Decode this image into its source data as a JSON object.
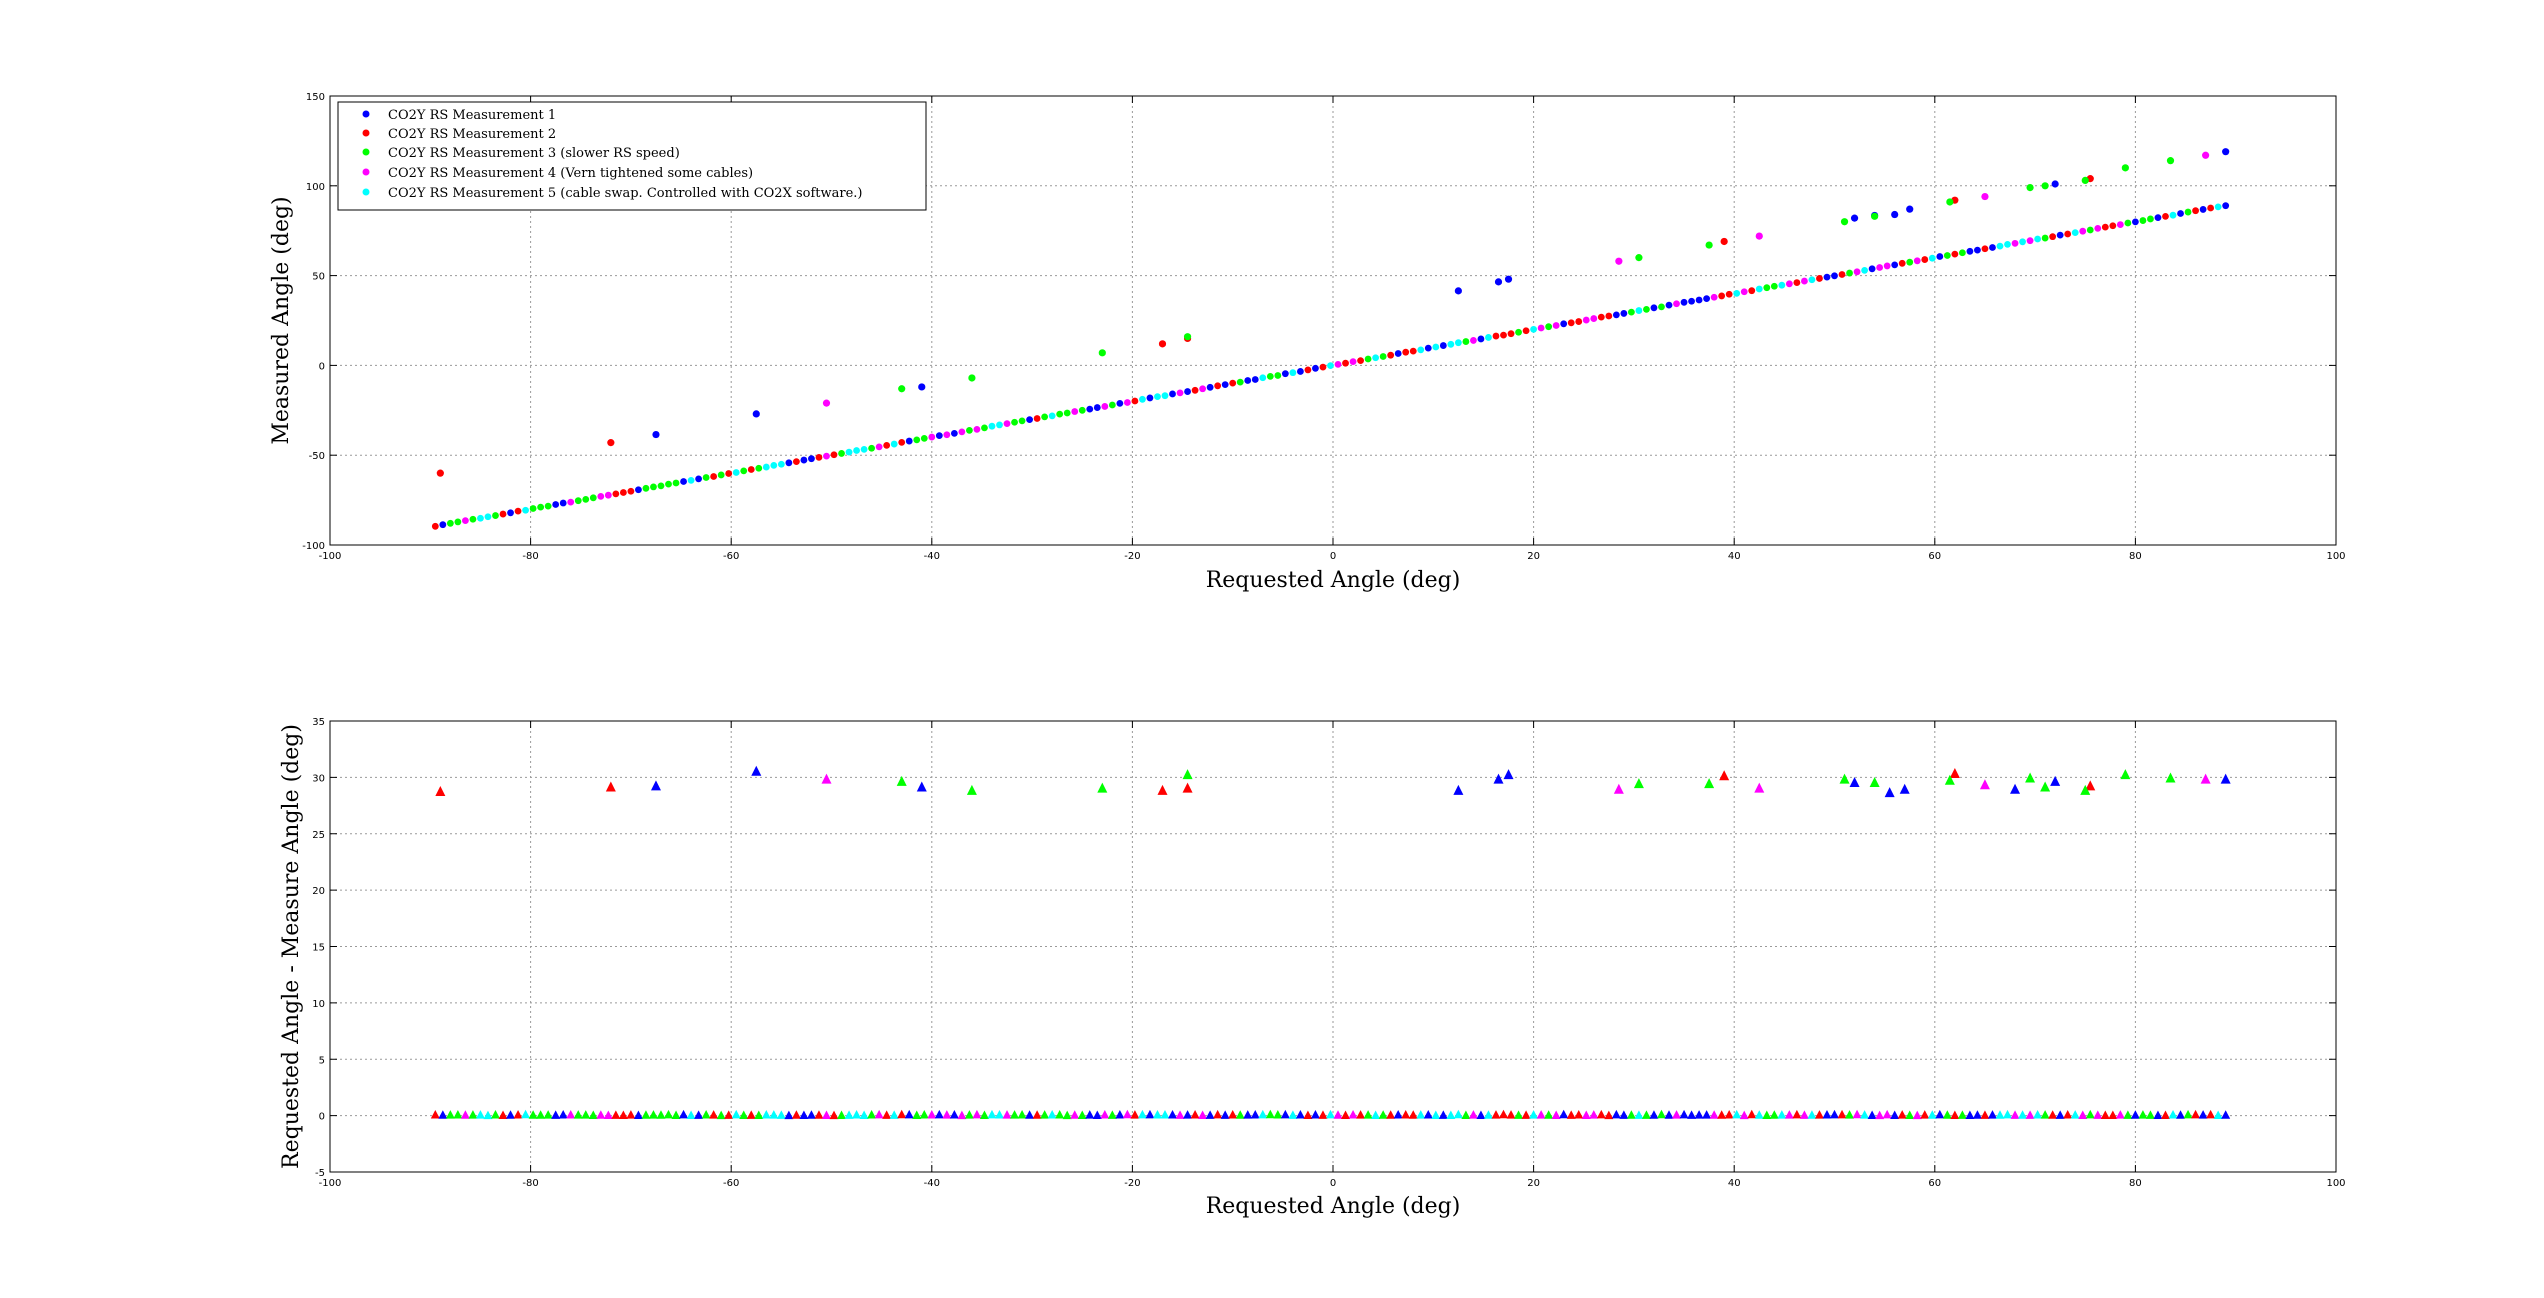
{
  "colors": {
    "background": "#ffffff",
    "series": [
      "#0000ff",
      "#ff0000",
      "#00ff00",
      "#ff00ff",
      "#00ffff"
    ]
  },
  "chart_data": [
    {
      "type": "scatter",
      "marker": "dot",
      "xlabel": "Requested Angle (deg)",
      "ylabel": "Measured Angle (deg)",
      "xlim": [
        -100,
        100
      ],
      "ylim": [
        -100,
        150
      ],
      "xticks": [
        -100,
        -80,
        -60,
        -40,
        -20,
        0,
        20,
        40,
        60,
        80,
        100
      ],
      "yticks": [
        -100,
        -50,
        0,
        50,
        100,
        150
      ],
      "grid": true,
      "legend_placement": "top-left",
      "series": [
        {
          "name": "CO2Y RS Measurement 1",
          "color": "#0000ff",
          "outliers": [
            [
              -67.5,
              -38.5
            ],
            [
              -57.5,
              -27
            ],
            [
              -41,
              -12
            ],
            [
              12.5,
              41.5
            ],
            [
              16.5,
              46.5
            ],
            [
              17.5,
              48
            ],
            [
              52,
              82
            ],
            [
              54,
              83.5
            ],
            [
              56,
              84
            ],
            [
              57.5,
              87
            ],
            [
              72,
              101
            ],
            [
              89,
              119
            ]
          ]
        },
        {
          "name": "CO2Y RS Measurement 2",
          "color": "#ff0000",
          "outliers": [
            [
              -89,
              -60
            ],
            [
              -72,
              -43
            ],
            [
              -17,
              12
            ],
            [
              -14.5,
              15
            ],
            [
              39,
              69
            ],
            [
              62,
              92
            ],
            [
              75.5,
              104
            ]
          ]
        },
        {
          "name": "CO2Y RS Measurement 3 (slower RS speed)",
          "color": "#00ff00",
          "outliers": [
            [
              -43,
              -13
            ],
            [
              -36,
              -7
            ],
            [
              -23,
              7
            ],
            [
              -14.5,
              16
            ],
            [
              30.5,
              60
            ],
            [
              37.5,
              67
            ],
            [
              51,
              80
            ],
            [
              54,
              83
            ],
            [
              61.5,
              91
            ],
            [
              69.5,
              99
            ],
            [
              71,
              100
            ],
            [
              75,
              103
            ],
            [
              79,
              110
            ],
            [
              83.5,
              114
            ]
          ]
        },
        {
          "name": "CO2Y RS Measurement 4 (Vern tightened some cables)",
          "color": "#ff00ff",
          "outliers": [
            [
              -50.5,
              -21
            ],
            [
              28.5,
              58
            ],
            [
              42.5,
              72
            ],
            [
              65,
              94
            ],
            [
              87,
              117
            ]
          ]
        },
        {
          "name": "CO2Y RS Measurement 5 (cable swap.  Controlled with CO2X software.)",
          "color": "#00ffff",
          "outliers": []
        }
      ]
    },
    {
      "type": "scatter",
      "marker": "triangle",
      "xlabel": "Requested Angle (deg)",
      "ylabel": "Requested Angle - Measure Angle (deg)",
      "xlim": [
        -100,
        100
      ],
      "ylim": [
        -5,
        35
      ],
      "xticks": [
        -100,
        -80,
        -60,
        -40,
        -20,
        0,
        20,
        40,
        60,
        80,
        100
      ],
      "yticks": [
        -5,
        0,
        5,
        10,
        15,
        20,
        25,
        30,
        35
      ],
      "grid": true,
      "baseline_value": 0,
      "series": [
        {
          "color": "#0000ff",
          "outliers": [
            [
              -67.5,
              29.2
            ],
            [
              -57.5,
              30.5
            ],
            [
              -41,
              29.1
            ],
            [
              12.5,
              28.8
            ],
            [
              16.5,
              29.8
            ],
            [
              17.5,
              30.2
            ],
            [
              52,
              29.5
            ],
            [
              55.5,
              28.6
            ],
            [
              57,
              28.9
            ],
            [
              68,
              28.9
            ],
            [
              72,
              29.6
            ],
            [
              89,
              29.8
            ]
          ]
        },
        {
          "color": "#ff0000",
          "outliers": [
            [
              -89,
              28.7
            ],
            [
              -72,
              29.1
            ],
            [
              -17,
              28.8
            ],
            [
              -14.5,
              29.0
            ],
            [
              39,
              30.1
            ],
            [
              62,
              30.3
            ],
            [
              75.5,
              29.2
            ]
          ]
        },
        {
          "color": "#00ff00",
          "outliers": [
            [
              -43,
              29.6
            ],
            [
              -36,
              28.8
            ],
            [
              -23,
              29.0
            ],
            [
              -14.5,
              30.2
            ],
            [
              30.5,
              29.4
            ],
            [
              37.5,
              29.4
            ],
            [
              51,
              29.8
            ],
            [
              54,
              29.5
            ],
            [
              61.5,
              29.7
            ],
            [
              69.5,
              29.9
            ],
            [
              71,
              29.1
            ],
            [
              75,
              28.8
            ],
            [
              79,
              30.2
            ],
            [
              83.5,
              29.9
            ]
          ]
        },
        {
          "color": "#ff00ff",
          "outliers": [
            [
              -50.5,
              29.8
            ],
            [
              28.5,
              28.9
            ],
            [
              42.5,
              29.0
            ],
            [
              65,
              29.3
            ],
            [
              87,
              29.8
            ]
          ]
        },
        {
          "color": "#00ffff",
          "outliers": []
        }
      ]
    }
  ]
}
